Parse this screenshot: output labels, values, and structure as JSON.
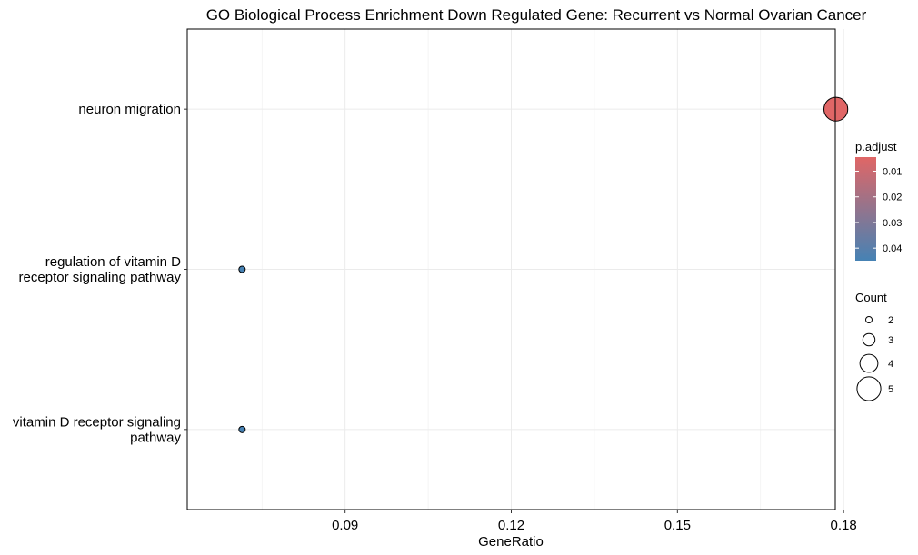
{
  "chart_data": {
    "type": "scatter",
    "title": "GO Biological Process Enrichment Down Regulated Gene: Recurrent vs Normal Ovarian Cancer",
    "xlabel": "GeneRatio",
    "ylabel": "",
    "xlim": [
      0.0615,
      0.1785
    ],
    "x_ticks": [
      0.09,
      0.12,
      0.15,
      0.18
    ],
    "x_tick_labels": [
      "0.09",
      "0.12",
      "0.15",
      "0.18"
    ],
    "categories": [
      [
        "neuron migration"
      ],
      [
        "regulation of vitamin D",
        "receptor signaling pathway"
      ],
      [
        "vitamin D receptor signaling",
        "pathway"
      ]
    ],
    "points": [
      {
        "term": "neuron migration",
        "gene_ratio": 0.1786,
        "count": 5,
        "p_adjust": 0.0045
      },
      {
        "term": "regulation of vitamin D receptor signaling pathway",
        "gene_ratio": 0.0714,
        "count": 2,
        "p_adjust": 0.0449
      },
      {
        "term": "vitamin D receptor signaling pathway",
        "gene_ratio": 0.0714,
        "count": 2,
        "p_adjust": 0.0449
      }
    ],
    "grid": true,
    "legend": {
      "color": {
        "title": "p.adjust",
        "labels": [
          "0.01",
          "0.02",
          "0.03",
          "0.04"
        ],
        "values": [
          0.01,
          0.02,
          0.03,
          0.04
        ],
        "range": [
          0.0045,
          0.0449
        ],
        "low_color": "#E06666",
        "high_color": "#4682B4"
      },
      "size": {
        "title": "Count",
        "labels": [
          "2",
          "3",
          "4",
          "5"
        ],
        "values": [
          2,
          3,
          4,
          5
        ]
      },
      "placement": "right"
    }
  }
}
